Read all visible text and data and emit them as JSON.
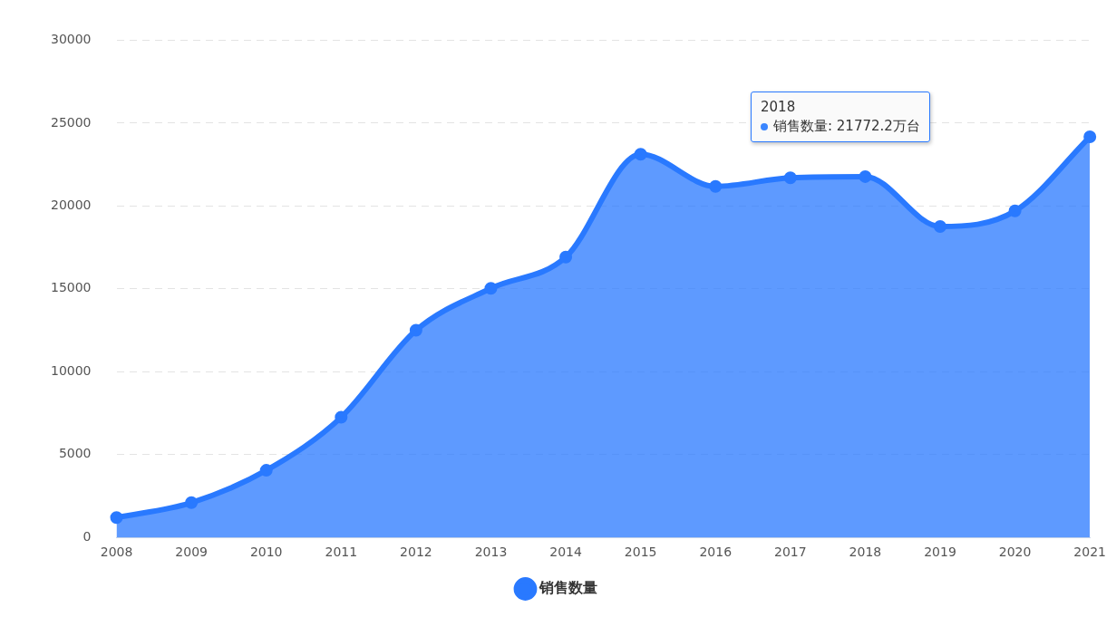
{
  "chart_data": {
    "type": "area",
    "categories": [
      "2008",
      "2009",
      "2010",
      "2011",
      "2012",
      "2013",
      "2014",
      "2015",
      "2016",
      "2017",
      "2018",
      "2019",
      "2020",
      "2021"
    ],
    "series": [
      {
        "name": "销售数量",
        "color": "#2979ff",
        "values": [
          1200,
          2100,
          4050,
          7250,
          12500,
          15030,
          16920,
          23120,
          21180,
          21700,
          21772.2,
          18760,
          19700,
          24170
        ]
      }
    ],
    "ylim": [
      0,
      30000
    ],
    "yticks": [
      0,
      5000,
      10000,
      15000,
      20000,
      25000,
      30000
    ],
    "grid": "y",
    "legend": "bottom",
    "marker": "circle",
    "line_style": "solid",
    "annotations": [
      "2018",
      "销售数量: 21772.2万台"
    ]
  }
}
